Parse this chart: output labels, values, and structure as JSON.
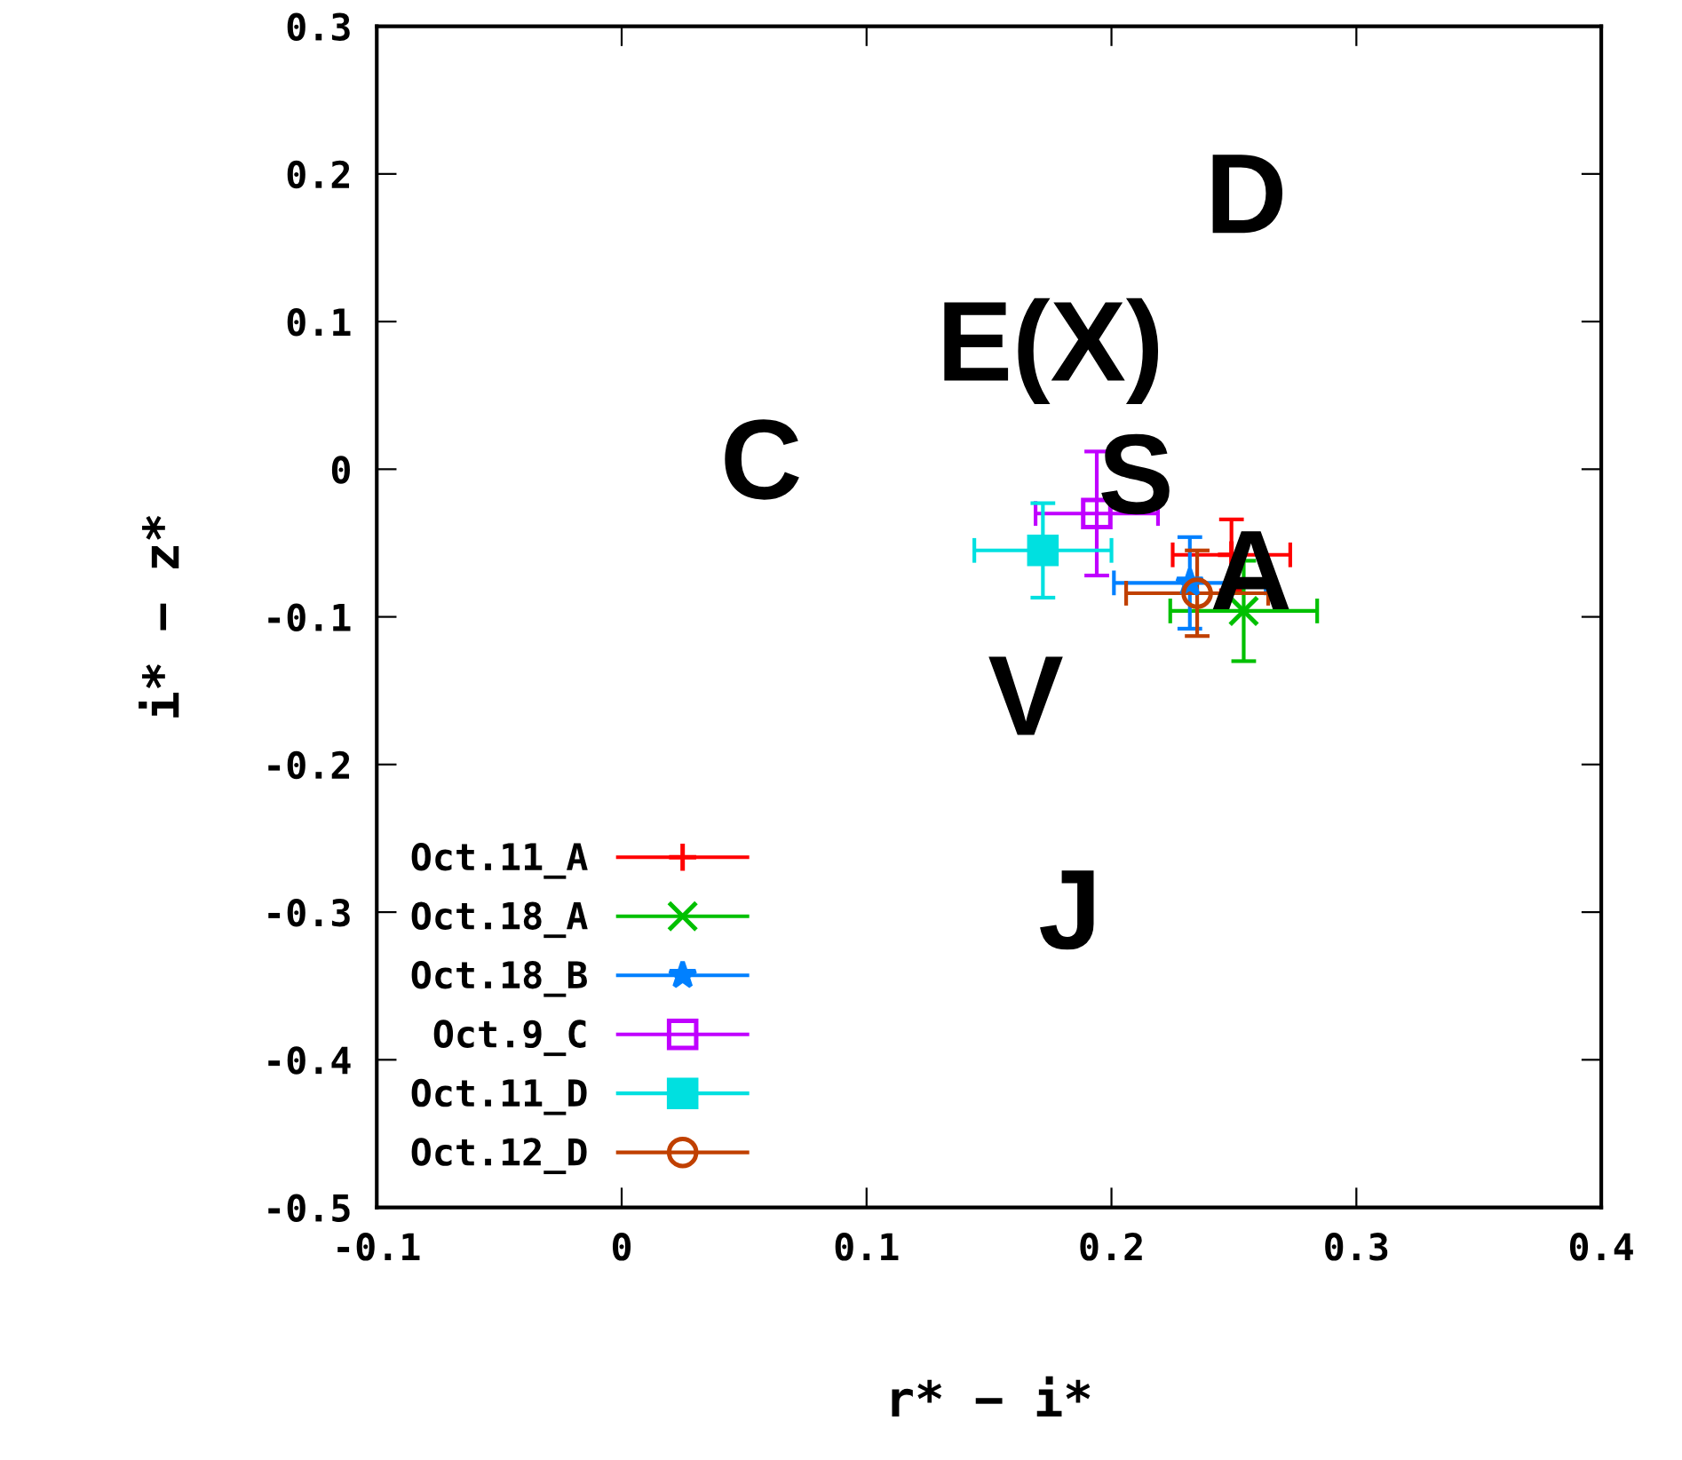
{
  "chart_data": {
    "type": "scatter",
    "xlabel": "r* − i*",
    "ylabel": "i* − z*",
    "xlim": [
      -0.1,
      0.4
    ],
    "xticks": [
      -0.1,
      0,
      0.1,
      0.2,
      0.3,
      0.4
    ],
    "ylim": [
      -0.5,
      0.3
    ],
    "yticks": [
      -0.5,
      -0.4,
      -0.3,
      -0.2,
      -0.1,
      0,
      0.1,
      0.2,
      0.3
    ],
    "grid": false,
    "legend": "bottom left",
    "series": [
      {
        "name": "Oct.11_A",
        "color": "#ff0000",
        "marker": "plus",
        "x": [
          0.249
        ],
        "values": [
          -0.058
        ],
        "xerrors": [
          0.024
        ],
        "errors": [
          0.024
        ]
      },
      {
        "name": "Oct.18_A",
        "color": "#00c000",
        "marker": "cross",
        "x": [
          0.254
        ],
        "values": [
          -0.096
        ],
        "xerrors": [
          0.03
        ],
        "errors": [
          0.034
        ]
      },
      {
        "name": "Oct.18_B",
        "color": "#0080ff",
        "marker": "star",
        "x": [
          0.232
        ],
        "values": [
          -0.077
        ],
        "xerrors": [
          0.031
        ],
        "errors": [
          0.031
        ]
      },
      {
        "name": "Oct.9_C",
        "color": "#c000ff",
        "marker": "square_open",
        "x": [
          0.194
        ],
        "values": [
          -0.03
        ],
        "xerrors": [
          0.025
        ],
        "errors": [
          0.042
        ]
      },
      {
        "name": "Oct.11_D",
        "color": "#00e0e0",
        "marker": "square",
        "x": [
          0.172
        ],
        "values": [
          -0.055
        ],
        "xerrors": [
          0.028
        ],
        "errors": [
          0.032
        ]
      },
      {
        "name": "Oct.12_D",
        "color": "#c04000",
        "marker": "circle_open",
        "x": [
          0.235
        ],
        "values": [
          -0.084
        ],
        "xerrors": [
          0.029
        ],
        "errors": [
          0.029
        ]
      }
    ],
    "annotations": [
      "D",
      "E(X)",
      "C",
      "S",
      {
        "text": "A",
        "x": 0.257,
        "y": -0.075
      },
      "V",
      "J"
    ]
  }
}
